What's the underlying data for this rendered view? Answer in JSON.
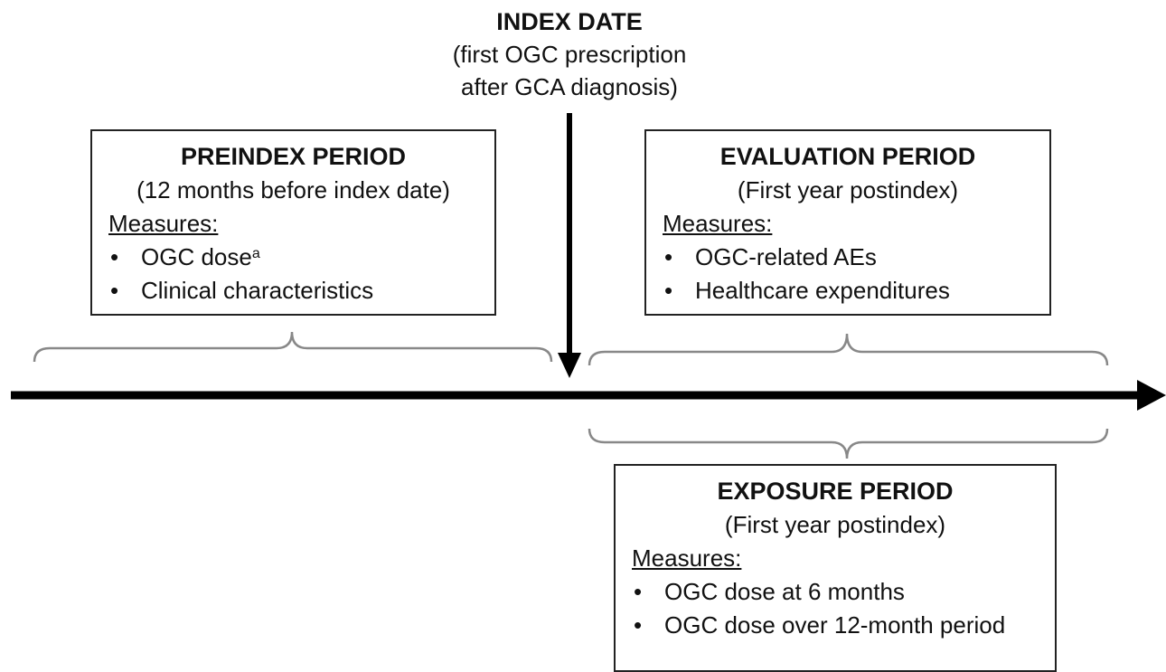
{
  "index_date": {
    "title": "INDEX DATE",
    "description": [
      "(first OGC prescription",
      "after GCA diagnosis)"
    ]
  },
  "periods": [
    {
      "title": "PREINDEX PERIOD",
      "subtitle": "(12 months before index date)",
      "measures_label": "Measures:",
      "items": [
        {
          "text": "OGC dose",
          "sup": "a"
        },
        {
          "text": "Clinical characteristics"
        }
      ]
    },
    {
      "title": "EVALUATION PERIOD",
      "subtitle": "(First year postindex)",
      "measures_label": "Measures:",
      "items": [
        {
          "text": "OGC-related AEs"
        },
        {
          "text": "Healthcare expenditures"
        }
      ]
    },
    {
      "title": "EXPOSURE PERIOD",
      "subtitle": "(First year postindex)",
      "measures_label": "Measures:",
      "items": [
        {
          "text": "OGC dose at 6 months"
        },
        {
          "text": "OGC dose over 12-month period"
        }
      ]
    }
  ]
}
